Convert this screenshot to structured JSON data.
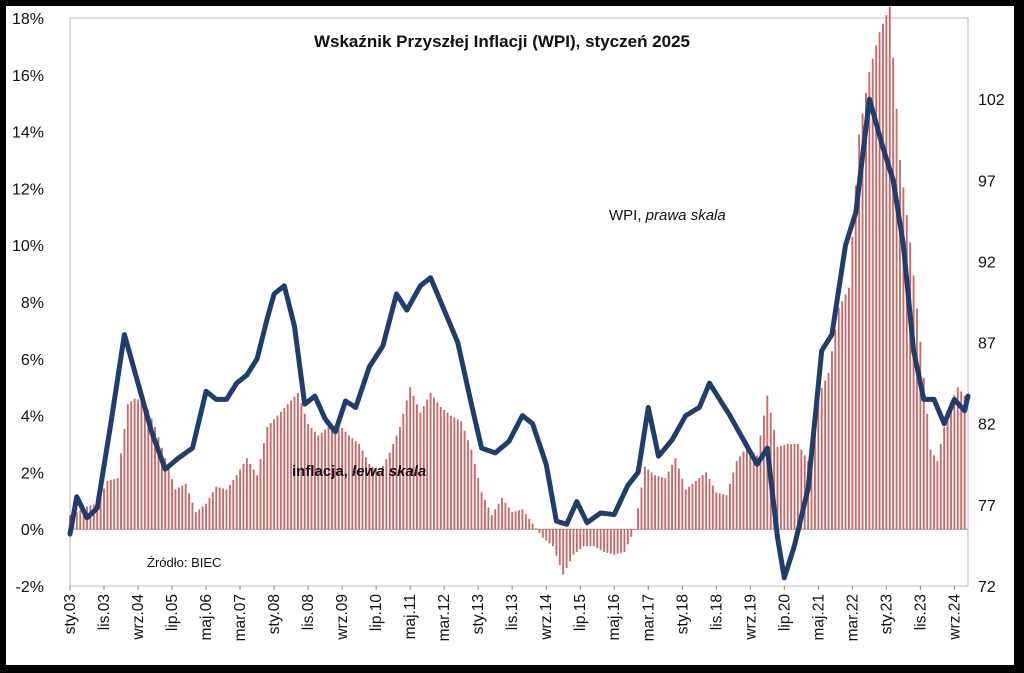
{
  "chart_data": {
    "type": "bar+line",
    "title": "Wskaźnik Przyszłej Inflacji (WPI), styczeń 2025",
    "source": "Źródło: BIEC",
    "annotations": {
      "wpi_label": "WPI, ",
      "wpi_label_italic": "prawa skala",
      "inflation_label": "inflacja, ",
      "inflation_label_italic": "lewa skala"
    },
    "left_axis": {
      "ticks": [
        "-2%",
        "0%",
        "2%",
        "4%",
        "6%",
        "8%",
        "10%",
        "12%",
        "14%",
        "16%",
        "18%"
      ],
      "ylim": [
        -2,
        18
      ]
    },
    "right_axis": {
      "ticks": [
        "72",
        "77",
        "82",
        "87",
        "92",
        "97",
        "102"
      ],
      "ylim": [
        72,
        107
      ]
    },
    "x_axis": {
      "start": "2003-01",
      "end": "2025-01",
      "tick_labels": [
        "sty.03",
        "lis.03",
        "wrz.04",
        "lip.05",
        "maj.06",
        "mar.07",
        "sty.08",
        "lis.08",
        "wrz.09",
        "lip.10",
        "maj.11",
        "mar.12",
        "sty.13",
        "lis.13",
        "wrz.14",
        "lip.15",
        "maj.16",
        "mar.17",
        "sty.18",
        "lis.18",
        "wrz.19",
        "lip.20",
        "maj.21",
        "mar.22",
        "sty.23",
        "lis.23",
        "wrz.24"
      ]
    },
    "colors": {
      "wpi_line": "#1f3e6e",
      "inflation_bars": "#c0504d"
    },
    "inflation_series": {
      "name": "inflacja",
      "axis": "left",
      "keypoints": [
        [
          "2003-01",
          0.5
        ],
        [
          "2003-03",
          0.6
        ],
        [
          "2003-06",
          0.8
        ],
        [
          "2003-09",
          0.9
        ],
        [
          "2003-12",
          1.7
        ],
        [
          "2004-03",
          1.8
        ],
        [
          "2004-06",
          4.4
        ],
        [
          "2004-08",
          4.6
        ],
        [
          "2004-11",
          4.5
        ],
        [
          "2005-02",
          3.6
        ],
        [
          "2005-05",
          2.5
        ],
        [
          "2005-08",
          1.4
        ],
        [
          "2005-11",
          1.6
        ],
        [
          "2006-02",
          0.6
        ],
        [
          "2006-05",
          0.9
        ],
        [
          "2006-08",
          1.5
        ],
        [
          "2006-11",
          1.4
        ],
        [
          "2007-02",
          1.9
        ],
        [
          "2007-05",
          2.5
        ],
        [
          "2007-08",
          1.9
        ],
        [
          "2007-11",
          3.6
        ],
        [
          "2008-02",
          4.0
        ],
        [
          "2008-05",
          4.4
        ],
        [
          "2008-08",
          4.8
        ],
        [
          "2008-11",
          3.7
        ],
        [
          "2009-02",
          3.3
        ],
        [
          "2009-05",
          3.6
        ],
        [
          "2009-08",
          3.7
        ],
        [
          "2009-11",
          3.3
        ],
        [
          "2010-02",
          3.0
        ],
        [
          "2010-05",
          2.3
        ],
        [
          "2010-08",
          2.0
        ],
        [
          "2010-11",
          2.7
        ],
        [
          "2011-02",
          3.6
        ],
        [
          "2011-05",
          5.0
        ],
        [
          "2011-08",
          4.1
        ],
        [
          "2011-11",
          4.8
        ],
        [
          "2012-02",
          4.3
        ],
        [
          "2012-05",
          4.0
        ],
        [
          "2012-08",
          3.8
        ],
        [
          "2012-11",
          2.8
        ],
        [
          "2013-02",
          1.3
        ],
        [
          "2013-05",
          0.5
        ],
        [
          "2013-08",
          1.1
        ],
        [
          "2013-11",
          0.6
        ],
        [
          "2014-02",
          0.7
        ],
        [
          "2014-05",
          0.2
        ],
        [
          "2014-08",
          -0.3
        ],
        [
          "2014-11",
          -0.6
        ],
        [
          "2015-02",
          -1.6
        ],
        [
          "2015-05",
          -0.9
        ],
        [
          "2015-08",
          -0.6
        ],
        [
          "2015-11",
          -0.6
        ],
        [
          "2016-02",
          -0.8
        ],
        [
          "2016-05",
          -0.9
        ],
        [
          "2016-08",
          -0.8
        ],
        [
          "2016-11",
          0.0
        ],
        [
          "2017-02",
          2.2
        ],
        [
          "2017-05",
          1.9
        ],
        [
          "2017-08",
          1.8
        ],
        [
          "2017-11",
          2.5
        ],
        [
          "2018-02",
          1.4
        ],
        [
          "2018-05",
          1.7
        ],
        [
          "2018-08",
          2.0
        ],
        [
          "2018-11",
          1.3
        ],
        [
          "2019-02",
          1.2
        ],
        [
          "2019-05",
          2.4
        ],
        [
          "2019-08",
          2.9
        ],
        [
          "2019-11",
          2.6
        ],
        [
          "2020-02",
          4.7
        ],
        [
          "2020-05",
          2.9
        ],
        [
          "2020-08",
          3.0
        ],
        [
          "2020-11",
          3.0
        ],
        [
          "2021-02",
          2.4
        ],
        [
          "2021-05",
          4.7
        ],
        [
          "2021-08",
          5.5
        ],
        [
          "2021-11",
          7.8
        ],
        [
          "2022-02",
          8.5
        ],
        [
          "2022-05",
          13.9
        ],
        [
          "2022-08",
          16.1
        ],
        [
          "2022-11",
          17.5
        ],
        [
          "2023-02",
          18.4
        ],
        [
          "2023-05",
          13.0
        ],
        [
          "2023-08",
          10.1
        ],
        [
          "2023-11",
          6.6
        ],
        [
          "2024-02",
          2.8
        ],
        [
          "2024-04",
          2.4
        ],
        [
          "2024-07",
          4.2
        ],
        [
          "2024-10",
          5.0
        ],
        [
          "2024-12",
          4.7
        ]
      ]
    },
    "wpi_series": {
      "name": "WPI",
      "axis": "right",
      "keypoints": [
        [
          "2003-01",
          75.2
        ],
        [
          "2003-03",
          77.5
        ],
        [
          "2003-06",
          76.2
        ],
        [
          "2003-09",
          76.8
        ],
        [
          "2004-01",
          82.0
        ],
        [
          "2004-05",
          87.5
        ],
        [
          "2004-09",
          84.5
        ],
        [
          "2005-01",
          81.5
        ],
        [
          "2005-05",
          79.2
        ],
        [
          "2005-09",
          79.9
        ],
        [
          "2006-01",
          80.5
        ],
        [
          "2006-05",
          84.0
        ],
        [
          "2006-08",
          83.5
        ],
        [
          "2006-11",
          83.5
        ],
        [
          "2007-02",
          84.5
        ],
        [
          "2007-05",
          85.0
        ],
        [
          "2007-08",
          86.0
        ],
        [
          "2007-11",
          88.5
        ],
        [
          "2008-01",
          90.0
        ],
        [
          "2008-04",
          90.5
        ],
        [
          "2008-07",
          88.0
        ],
        [
          "2008-10",
          83.2
        ],
        [
          "2009-01",
          83.7
        ],
        [
          "2009-04",
          82.3
        ],
        [
          "2009-07",
          81.5
        ],
        [
          "2009-10",
          83.4
        ],
        [
          "2010-01",
          83.0
        ],
        [
          "2010-05",
          85.5
        ],
        [
          "2010-09",
          86.8
        ],
        [
          "2011-01",
          90.0
        ],
        [
          "2011-04",
          89.0
        ],
        [
          "2011-08",
          90.5
        ],
        [
          "2011-11",
          91.0
        ],
        [
          "2012-03",
          89.0
        ],
        [
          "2012-07",
          87.0
        ],
        [
          "2012-11",
          83.2
        ],
        [
          "2013-02",
          80.5
        ],
        [
          "2013-06",
          80.2
        ],
        [
          "2013-10",
          80.9
        ],
        [
          "2014-02",
          82.5
        ],
        [
          "2014-05",
          82.0
        ],
        [
          "2014-09",
          79.5
        ],
        [
          "2014-12",
          76.0
        ],
        [
          "2015-03",
          75.8
        ],
        [
          "2015-06",
          77.2
        ],
        [
          "2015-09",
          75.9
        ],
        [
          "2016-01",
          76.5
        ],
        [
          "2016-05",
          76.4
        ],
        [
          "2016-09",
          78.2
        ],
        [
          "2016-12",
          79.0
        ],
        [
          "2017-03",
          83.0
        ],
        [
          "2017-06",
          80.0
        ],
        [
          "2017-10",
          81.0
        ],
        [
          "2018-02",
          82.5
        ],
        [
          "2018-06",
          83.0
        ],
        [
          "2018-09",
          84.5
        ],
        [
          "2018-12",
          83.5
        ],
        [
          "2019-03",
          82.5
        ],
        [
          "2019-07",
          81.0
        ],
        [
          "2019-11",
          79.5
        ],
        [
          "2020-02",
          80.5
        ],
        [
          "2020-05",
          75.0
        ],
        [
          "2020-07",
          72.5
        ],
        [
          "2020-10",
          74.5
        ],
        [
          "2021-02",
          78.0
        ],
        [
          "2021-06",
          86.5
        ],
        [
          "2021-09",
          87.5
        ],
        [
          "2022-01",
          93.0
        ],
        [
          "2022-04",
          95.0
        ],
        [
          "2022-08",
          102.0
        ],
        [
          "2022-12",
          99.0
        ],
        [
          "2023-03",
          97.0
        ],
        [
          "2023-06",
          93.0
        ],
        [
          "2023-09",
          86.5
        ],
        [
          "2023-12",
          83.5
        ],
        [
          "2024-03",
          83.5
        ],
        [
          "2024-06",
          82.0
        ],
        [
          "2024-09",
          83.5
        ],
        [
          "2024-12",
          82.8
        ],
        [
          "2025-01",
          83.7
        ]
      ]
    }
  }
}
